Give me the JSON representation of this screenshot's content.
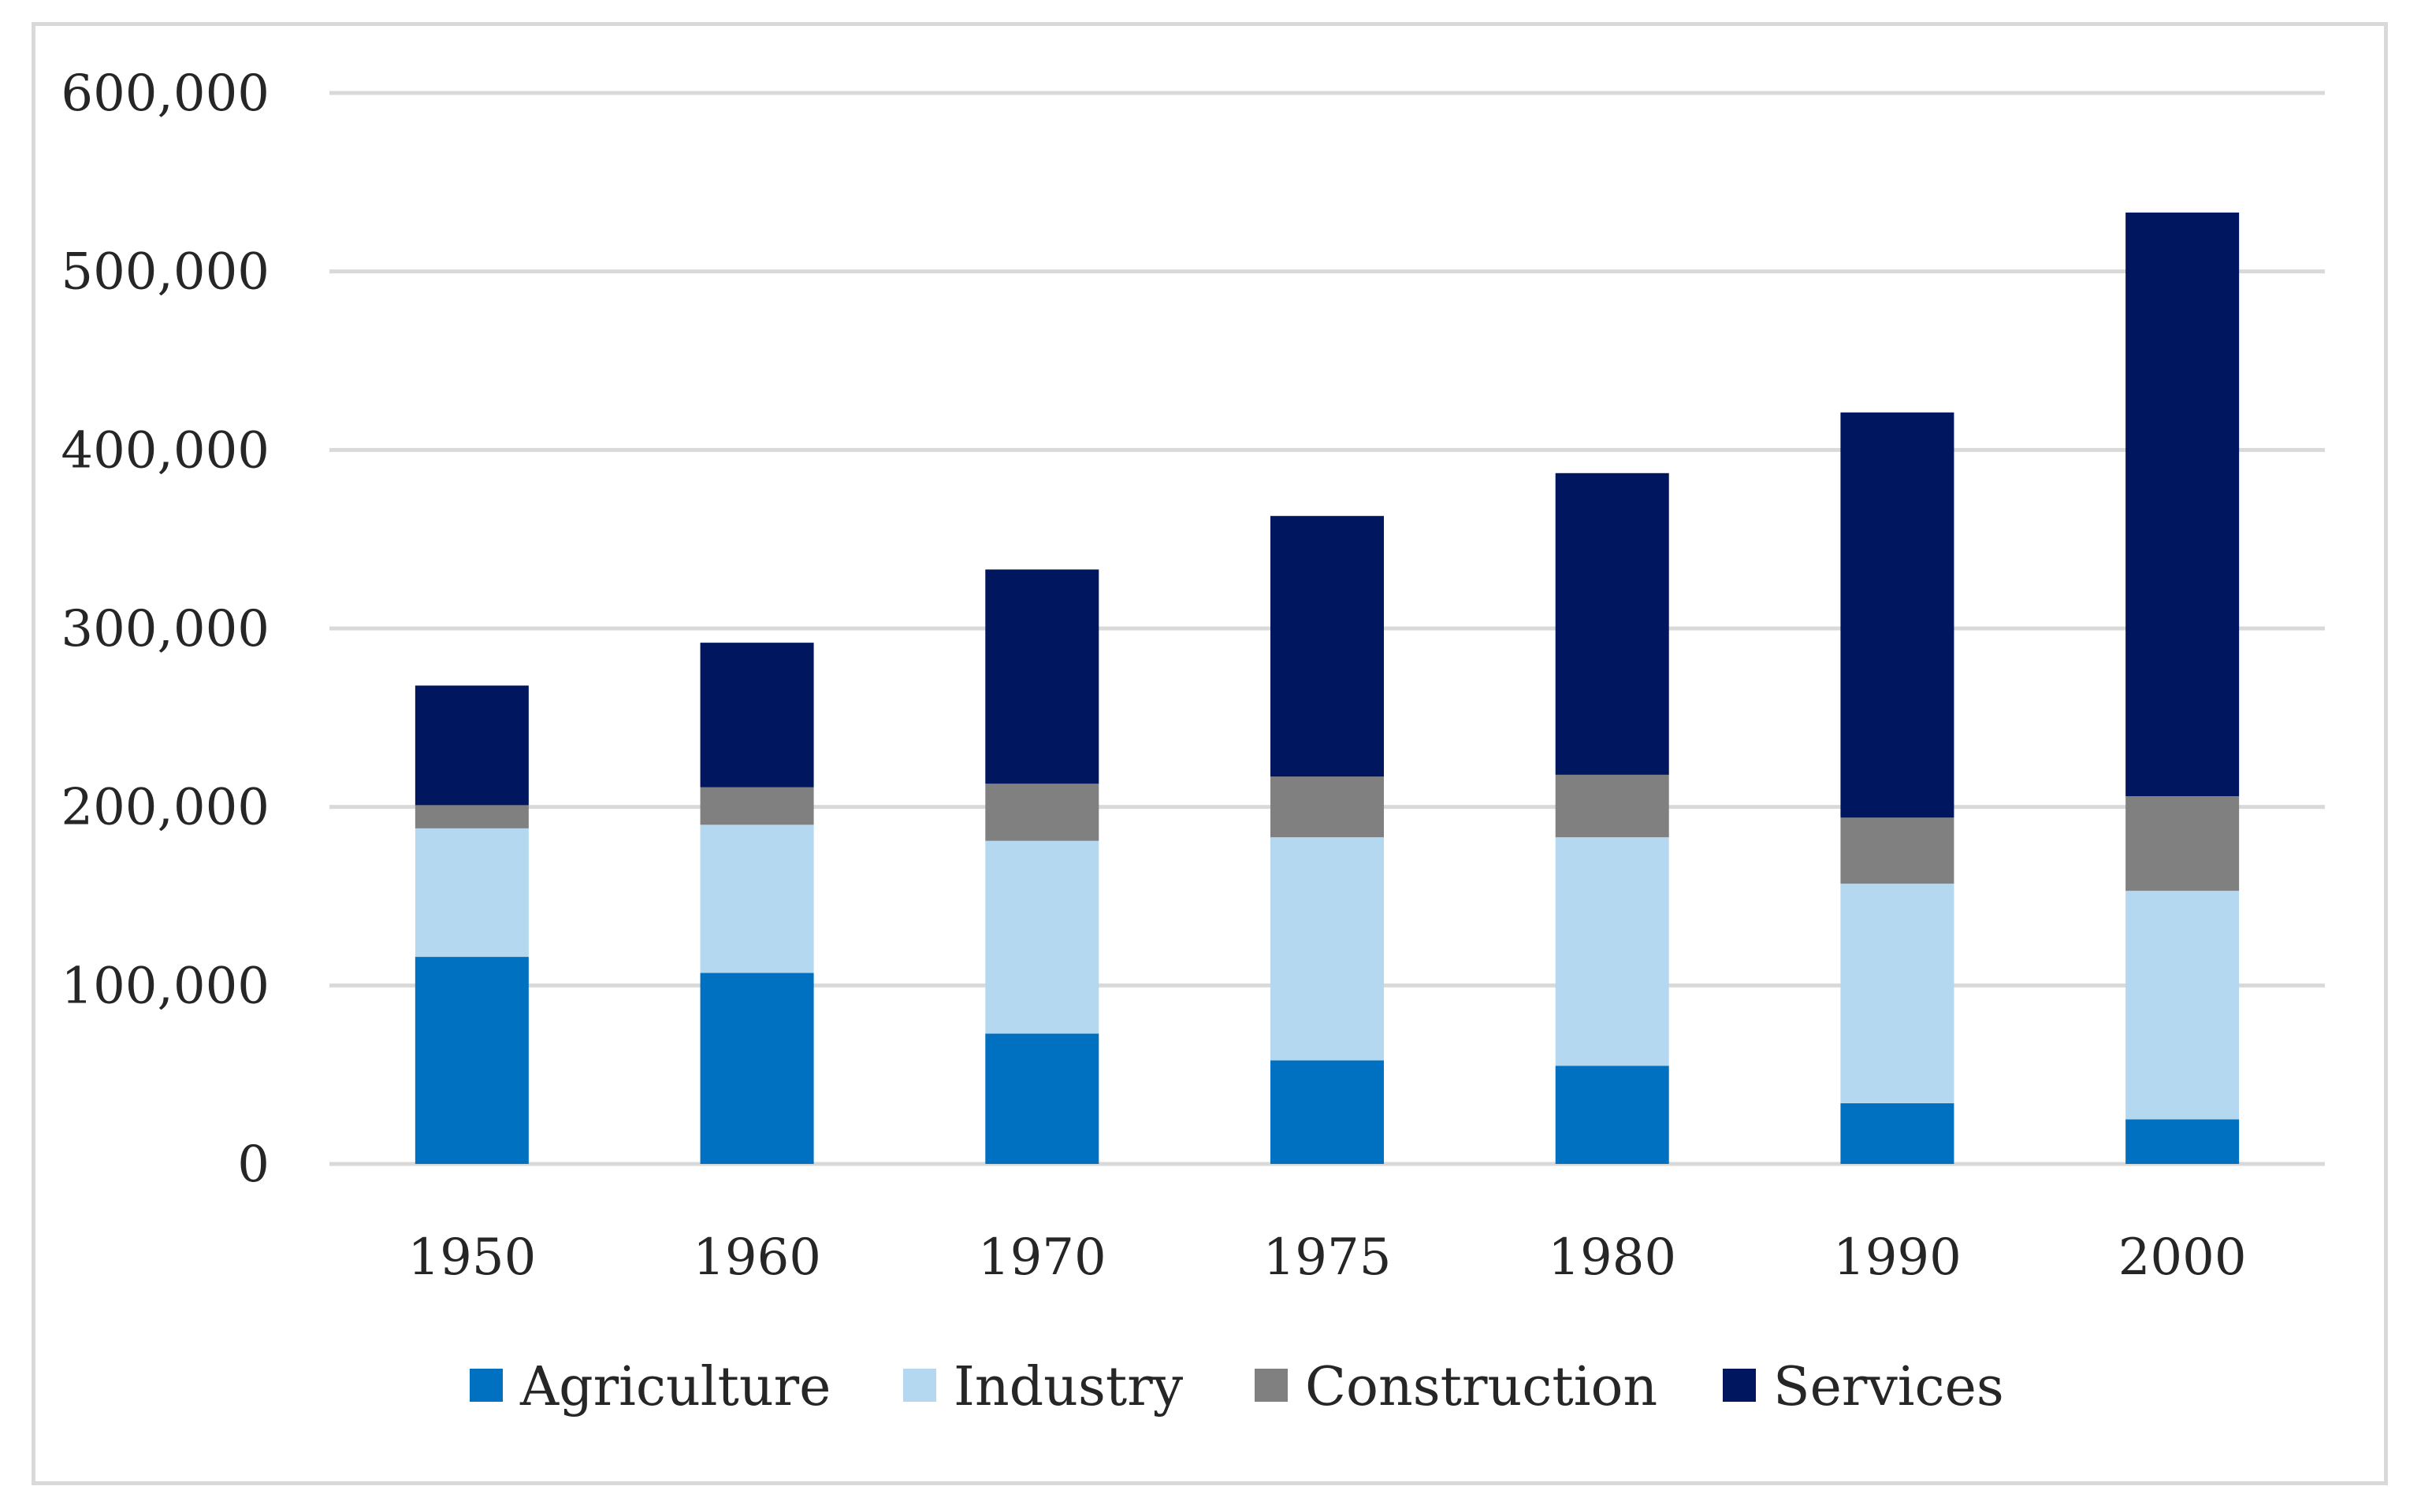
{
  "chart_data": {
    "type": "bar",
    "stacked": true,
    "title": "",
    "xlabel": "",
    "ylabel": "",
    "ylim": [
      0,
      600000
    ],
    "yticks": [
      0,
      100000,
      200000,
      300000,
      400000,
      500000,
      600000
    ],
    "ytick_labels": [
      "0",
      "100,000",
      "200,000",
      "300,000",
      "400,000",
      "500,000",
      "600,000"
    ],
    "grid": true,
    "legend_position": "bottom",
    "categories": [
      "1950",
      "1960",
      "1970",
      "1975",
      "1980",
      "1990",
      "2000"
    ],
    "series": [
      {
        "name": "Agriculture",
        "color": "#0070c0",
        "values": [
          116000,
          107000,
          73000,
          58000,
          55000,
          34000,
          25000
        ]
      },
      {
        "name": "Industry",
        "color": "#b4d8f0",
        "values": [
          72000,
          83000,
          108000,
          125000,
          128000,
          123000,
          128000
        ]
      },
      {
        "name": "Construction",
        "color": "#808080",
        "values": [
          13000,
          21000,
          32000,
          34000,
          35000,
          37000,
          53000
        ]
      },
      {
        "name": "Services",
        "color": "#001760",
        "values": [
          67000,
          81000,
          120000,
          146000,
          169000,
          227000,
          327000
        ]
      }
    ]
  }
}
